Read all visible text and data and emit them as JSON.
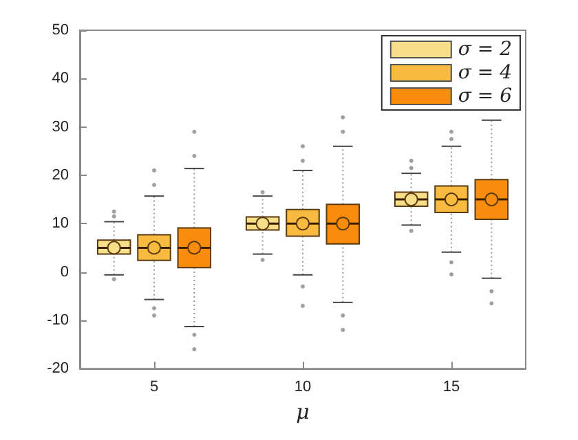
{
  "chart_data": {
    "type": "box",
    "xlabel": "μ",
    "categories": [
      "5",
      "10",
      "15"
    ],
    "ylim": [
      -20,
      50
    ],
    "yticks": [
      -20,
      -10,
      0,
      10,
      20,
      30,
      40,
      50
    ],
    "grid": false,
    "legend": "top right",
    "marker": "circle",
    "series": [
      {
        "name": "σ = 2",
        "color": "#f7df8a",
        "boxes": [
          {
            "low": -0.6,
            "q1": 3.7,
            "median": 5,
            "q3": 6.6,
            "high": 10.4,
            "mean": 5,
            "outliers": [
              11.5,
              12.5,
              -1.5
            ]
          },
          {
            "low": 3.7,
            "q1": 8.7,
            "median": 10,
            "q3": 11.4,
            "high": 15.7,
            "mean": 10,
            "outliers": [
              16.5,
              2.5
            ]
          },
          {
            "low": 9.7,
            "q1": 13.6,
            "median": 15,
            "q3": 16.5,
            "high": 20.4,
            "mean": 15,
            "outliers": [
              21.5,
              23,
              8.5
            ]
          }
        ]
      },
      {
        "name": "σ = 4",
        "color": "#f9bb3f",
        "boxes": [
          {
            "low": -5.7,
            "q1": 2.4,
            "median": 5,
            "q3": 7.7,
            "high": 15.7,
            "mean": 5,
            "outliers": [
              18,
              21,
              -7.5,
              -9
            ]
          },
          {
            "low": -0.6,
            "q1": 7.4,
            "median": 10,
            "q3": 12.9,
            "high": 21,
            "mean": 10,
            "outliers": [
              23,
              26,
              -3,
              -7
            ]
          },
          {
            "low": 4.1,
            "q1": 12.3,
            "median": 15,
            "q3": 17.8,
            "high": 26,
            "mean": 15,
            "outliers": [
              27.5,
              29,
              2,
              -0.5
            ]
          }
        ]
      },
      {
        "name": "σ = 6",
        "color": "#f98c0c",
        "boxes": [
          {
            "low": -11.3,
            "q1": 0.9,
            "median": 5,
            "q3": 9.1,
            "high": 21.4,
            "mean": 5,
            "outliers": [
              24,
              29,
              -13,
              -16
            ]
          },
          {
            "low": -6.3,
            "q1": 5.8,
            "median": 10,
            "q3": 14,
            "high": 26,
            "mean": 10,
            "outliers": [
              29,
              32,
              -9,
              -12
            ]
          },
          {
            "low": -1.3,
            "q1": 10.9,
            "median": 15,
            "q3": 19.1,
            "high": 31.4,
            "mean": 15,
            "outliers": [
              -4,
              -6.5
            ]
          }
        ]
      }
    ]
  }
}
